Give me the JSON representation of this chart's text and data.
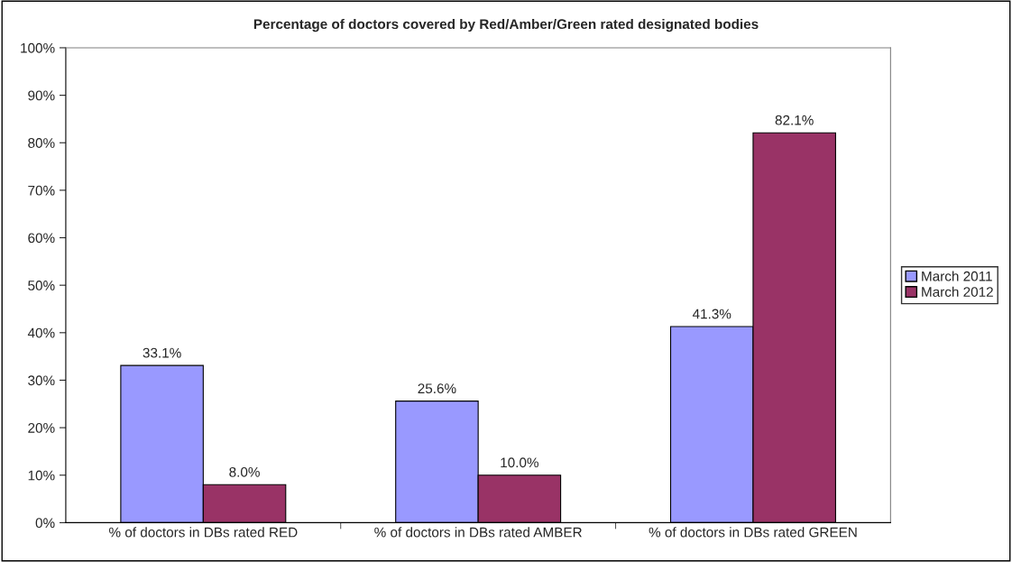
{
  "chart_data": {
    "type": "bar",
    "title": "Percentage of doctors covered by Red/Amber/Green rated designated bodies",
    "categories": [
      "% of doctors in DBs rated RED",
      "% of doctors in DBs rated AMBER",
      "% of doctors in DBs rated GREEN"
    ],
    "series": [
      {
        "name": "March 2011",
        "color": "#9999ff",
        "values": [
          33.1,
          25.6,
          41.3
        ],
        "value_labels": [
          "33.1%",
          "25.6%",
          "41.3%"
        ]
      },
      {
        "name": "March 2012",
        "color": "#993366",
        "values": [
          8.0,
          10.0,
          82.1
        ],
        "value_labels": [
          "8.0%",
          "10.0%",
          "82.1%"
        ]
      }
    ],
    "ylim": [
      0,
      100
    ],
    "yticks": [
      {
        "value": 0,
        "label": "0%"
      },
      {
        "value": 10,
        "label": "10%"
      },
      {
        "value": 20,
        "label": "20%"
      },
      {
        "value": 30,
        "label": "30%"
      },
      {
        "value": 40,
        "label": "40%"
      },
      {
        "value": 50,
        "label": "50%"
      },
      {
        "value": 60,
        "label": "60%"
      },
      {
        "value": 70,
        "label": "70%"
      },
      {
        "value": 80,
        "label": "80%"
      },
      {
        "value": 90,
        "label": "90%"
      },
      {
        "value": 100,
        "label": "100%"
      }
    ],
    "grid": false,
    "legend": "right"
  }
}
